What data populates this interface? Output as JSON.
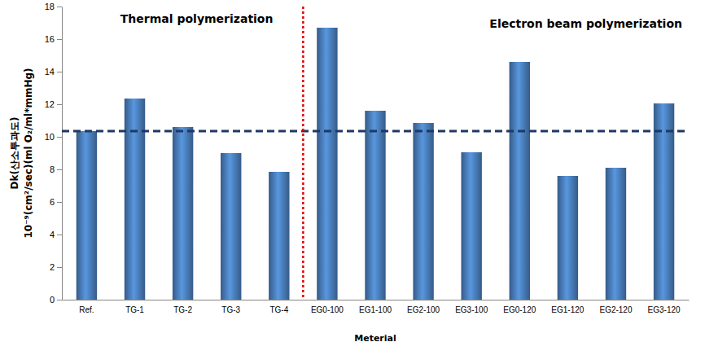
{
  "chart_data": {
    "type": "bar",
    "categories": [
      "Ref.",
      "TG-1",
      "TG-2",
      "TG-3",
      "TG-4",
      "EG0-100",
      "EG1-100",
      "EG2-100",
      "EG3-100",
      "EG0-120",
      "EG1-120",
      "EG2-120",
      "EG3-120"
    ],
    "values": [
      10.35,
      12.35,
      10.6,
      9.0,
      7.85,
      16.7,
      11.6,
      10.85,
      9.05,
      14.6,
      7.6,
      8.1,
      12.05
    ],
    "color": "#4a7ebb",
    "x_label": "Meterial",
    "y_label": [
      "Dk(산소투과도)",
      "10⁻⁹(cm²/sec)(ml O₂/ml*mmHg)"
    ],
    "annotations": [
      "Thermal polymerization",
      "Electron beam polymerization"
    ],
    "reference_line": 10.35,
    "ylim": [
      0,
      18
    ],
    "yticks": [
      0,
      2,
      4,
      6,
      8,
      10,
      12,
      14,
      16,
      18
    ],
    "grid": false
  }
}
